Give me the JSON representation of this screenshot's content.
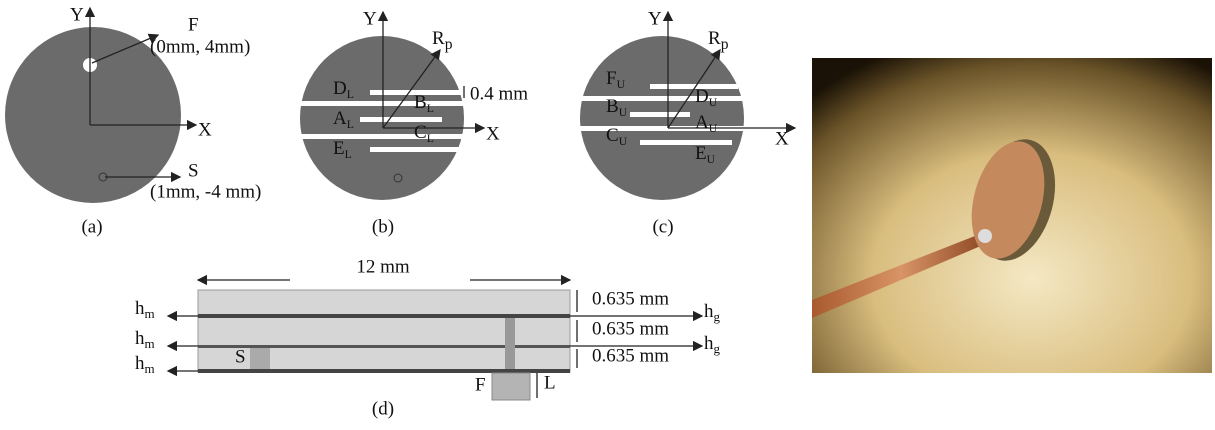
{
  "panel_a": {
    "y_axis": "Y",
    "x_axis": "X",
    "feed_label": "F",
    "feed_coord": "(0mm, 4mm)",
    "short_label": "S",
    "short_coord": "(1mm, -4 mm)",
    "caption": "(a)"
  },
  "panel_b": {
    "y_axis": "Y",
    "x_axis": "X",
    "radius": {
      "main": "R",
      "sub": "p"
    },
    "gap": "0.4 mm",
    "slots": [
      {
        "main": "D",
        "sub": "L"
      },
      {
        "main": "B",
        "sub": "L"
      },
      {
        "main": "A",
        "sub": "L"
      },
      {
        "main": "C",
        "sub": "L"
      },
      {
        "main": "E",
        "sub": "L"
      }
    ],
    "caption": "(b)"
  },
  "panel_c": {
    "y_axis": "Y",
    "x_axis": "X",
    "radius": {
      "main": "R",
      "sub": "p"
    },
    "slots": [
      {
        "main": "F",
        "sub": "U"
      },
      {
        "main": "D",
        "sub": "U"
      },
      {
        "main": "B",
        "sub": "U"
      },
      {
        "main": "A",
        "sub": "U"
      },
      {
        "main": "C",
        "sub": "U"
      },
      {
        "main": "E",
        "sub": "U"
      }
    ],
    "caption": "(c)"
  },
  "panel_d": {
    "width": "12 mm",
    "thickness": [
      "0.635 mm",
      "0.635 mm",
      "0.635 mm"
    ],
    "metal": [
      {
        "main": "h",
        "sub": "m"
      },
      {
        "main": "h",
        "sub": "m"
      },
      {
        "main": "h",
        "sub": "m"
      }
    ],
    "ground": [
      {
        "main": "h",
        "sub": "g"
      },
      {
        "main": "h",
        "sub": "g"
      }
    ],
    "short_label": "S",
    "feed_label": "F",
    "feed_length": "L",
    "caption": "(d)"
  }
}
